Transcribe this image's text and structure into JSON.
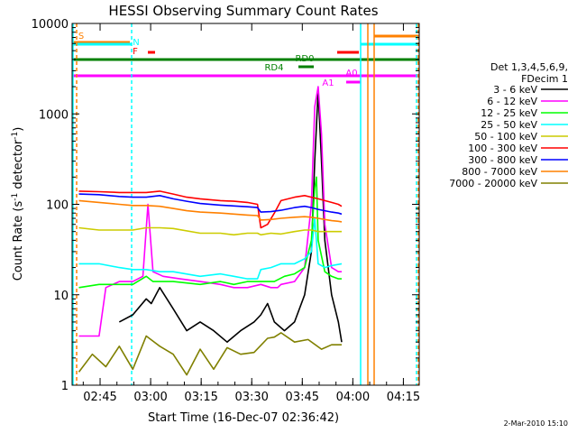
{
  "chart_data": {
    "type": "line",
    "title": "HESSI Observing Summary Count Rates",
    "xlabel": "Start Time (16-Dec-07 02:36:42)",
    "ylabel_main": "Count Rate (s",
    "ylabel_sup1": "-1",
    "ylabel_mid": " detector",
    "ylabel_sup2": "-1",
    "ylabel_end": ")",
    "y_scale": "log",
    "ylim": [
      1,
      10000
    ],
    "xlim_minutes": [
      0,
      103
    ],
    "x_ticks": [
      {
        "label": "02:45",
        "min": 8.3
      },
      {
        "label": "03:00",
        "min": 23.3
      },
      {
        "label": "03:15",
        "min": 38.3
      },
      {
        "label": "03:30",
        "min": 53.3
      },
      {
        "label": "03:45",
        "min": 68.3
      },
      {
        "label": "04:00",
        "min": 83.3
      },
      {
        "label": "04:15",
        "min": 98.3
      }
    ],
    "y_ticks": [
      {
        "label": "1",
        "value": 1
      },
      {
        "label": "10",
        "value": 10
      },
      {
        "label": "100",
        "value": 100
      },
      {
        "label": "1000",
        "value": 1000
      },
      {
        "label": "10000",
        "value": 10000
      }
    ],
    "legend_header": [
      "Det 1,3,4,5,6,9,",
      "FDecim 1"
    ],
    "series": [
      {
        "name": "3 - 6 keV",
        "color": "#000000",
        "points": [
          [
            14,
            5
          ],
          [
            18,
            6
          ],
          [
            22,
            9
          ],
          [
            23.5,
            8
          ],
          [
            26,
            12
          ],
          [
            30,
            7
          ],
          [
            34,
            4
          ],
          [
            38,
            5
          ],
          [
            42,
            4
          ],
          [
            46,
            3
          ],
          [
            50,
            4
          ],
          [
            54,
            5
          ],
          [
            56,
            6
          ],
          [
            58,
            8
          ],
          [
            60,
            5
          ],
          [
            63,
            4
          ],
          [
            66,
            5
          ],
          [
            69,
            10
          ],
          [
            71,
            30
          ],
          [
            72,
            300
          ],
          [
            73,
            1800
          ],
          [
            74,
            300
          ],
          [
            75,
            40
          ],
          [
            77,
            10
          ],
          [
            79,
            5
          ],
          [
            80,
            3
          ]
        ]
      },
      {
        "name": "6 - 12 keV",
        "color": "#ff00ff",
        "points": [
          [
            2,
            3.5
          ],
          [
            8,
            3.5
          ],
          [
            10,
            12
          ],
          [
            14,
            14
          ],
          [
            18,
            14
          ],
          [
            21,
            16
          ],
          [
            22.5,
            100
          ],
          [
            24,
            18
          ],
          [
            27,
            16
          ],
          [
            32,
            15
          ],
          [
            38,
            14
          ],
          [
            44,
            13
          ],
          [
            48,
            12
          ],
          [
            52,
            12
          ],
          [
            56,
            13
          ],
          [
            59,
            12
          ],
          [
            61,
            12
          ],
          [
            62,
            13
          ],
          [
            66,
            14
          ],
          [
            69,
            20
          ],
          [
            71,
            100
          ],
          [
            72,
            1200
          ],
          [
            73,
            2000
          ],
          [
            74,
            600
          ],
          [
            75,
            60
          ],
          [
            77,
            20
          ],
          [
            79,
            18
          ],
          [
            80,
            18
          ]
        ]
      },
      {
        "name": "12 - 25 keV",
        "color": "#00ff00",
        "points": [
          [
            2,
            12
          ],
          [
            8,
            13
          ],
          [
            14,
            13
          ],
          [
            18,
            13
          ],
          [
            22,
            16
          ],
          [
            24,
            14
          ],
          [
            30,
            14
          ],
          [
            38,
            13
          ],
          [
            44,
            14
          ],
          [
            48,
            13
          ],
          [
            52,
            14
          ],
          [
            56,
            14
          ],
          [
            60,
            14
          ],
          [
            63,
            16
          ],
          [
            66,
            17
          ],
          [
            69,
            20
          ],
          [
            71,
            40
          ],
          [
            72,
            150
          ],
          [
            72.5,
            200
          ],
          [
            73,
            40
          ],
          [
            75,
            18
          ],
          [
            77,
            16
          ],
          [
            79,
            15
          ],
          [
            80,
            15
          ]
        ]
      },
      {
        "name": "25 - 50 keV",
        "color": "#00ffff",
        "points": [
          [
            2,
            22
          ],
          [
            8,
            22
          ],
          [
            14,
            20
          ],
          [
            18,
            19
          ],
          [
            22,
            19
          ],
          [
            26,
            18
          ],
          [
            30,
            18
          ],
          [
            38,
            16
          ],
          [
            44,
            17
          ],
          [
            48,
            16
          ],
          [
            52,
            15
          ],
          [
            55,
            15
          ],
          [
            56,
            19
          ],
          [
            59,
            20
          ],
          [
            62,
            22
          ],
          [
            66,
            22
          ],
          [
            69,
            25
          ],
          [
            71,
            30
          ],
          [
            72,
            70
          ],
          [
            73,
            22
          ],
          [
            75,
            20
          ],
          [
            77,
            21
          ],
          [
            80,
            22
          ]
        ]
      },
      {
        "name": "50 - 100 keV",
        "color": "#cccc00",
        "points": [
          [
            2,
            55
          ],
          [
            8,
            52
          ],
          [
            14,
            52
          ],
          [
            18,
            52
          ],
          [
            22,
            55
          ],
          [
            26,
            55
          ],
          [
            30,
            54
          ],
          [
            38,
            48
          ],
          [
            44,
            48
          ],
          [
            48,
            46
          ],
          [
            52,
            48
          ],
          [
            55,
            48
          ],
          [
            56,
            46
          ],
          [
            59,
            48
          ],
          [
            62,
            47
          ],
          [
            66,
            50
          ],
          [
            69,
            52
          ],
          [
            71,
            52
          ],
          [
            73,
            50
          ],
          [
            76,
            50
          ],
          [
            78,
            50
          ],
          [
            80,
            50
          ]
        ]
      },
      {
        "name": "100 - 300 keV",
        "color": "#ff0000",
        "points": [
          [
            2,
            140
          ],
          [
            8,
            138
          ],
          [
            14,
            135
          ],
          [
            18,
            135
          ],
          [
            22,
            135
          ],
          [
            26,
            140
          ],
          [
            30,
            130
          ],
          [
            34,
            120
          ],
          [
            38,
            115
          ],
          [
            44,
            110
          ],
          [
            48,
            108
          ],
          [
            52,
            105
          ],
          [
            55,
            100
          ],
          [
            56,
            55
          ],
          [
            58,
            60
          ],
          [
            60,
            80
          ],
          [
            62,
            110
          ],
          [
            66,
            120
          ],
          [
            69,
            125
          ],
          [
            71,
            120
          ],
          [
            73,
            115
          ],
          [
            75,
            110
          ],
          [
            77,
            105
          ],
          [
            79,
            100
          ],
          [
            80,
            95
          ]
        ]
      },
      {
        "name": "300 - 800 keV",
        "color": "#0000ff",
        "points": [
          [
            2,
            130
          ],
          [
            8,
            128
          ],
          [
            14,
            122
          ],
          [
            18,
            120
          ],
          [
            22,
            120
          ],
          [
            26,
            125
          ],
          [
            30,
            115
          ],
          [
            34,
            108
          ],
          [
            38,
            102
          ],
          [
            44,
            98
          ],
          [
            48,
            96
          ],
          [
            52,
            94
          ],
          [
            55,
            92
          ],
          [
            56,
            82
          ],
          [
            59,
            83
          ],
          [
            62,
            86
          ],
          [
            66,
            92
          ],
          [
            69,
            95
          ],
          [
            71,
            92
          ],
          [
            73,
            88
          ],
          [
            75,
            85
          ],
          [
            77,
            82
          ],
          [
            79,
            80
          ],
          [
            80,
            78
          ]
        ]
      },
      {
        "name": "800 - 7000 keV",
        "color": "#ff8000",
        "points": [
          [
            2,
            110
          ],
          [
            8,
            105
          ],
          [
            14,
            100
          ],
          [
            18,
            97
          ],
          [
            22,
            97
          ],
          [
            26,
            95
          ],
          [
            30,
            90
          ],
          [
            34,
            85
          ],
          [
            38,
            82
          ],
          [
            44,
            80
          ],
          [
            48,
            78
          ],
          [
            52,
            76
          ],
          [
            55,
            75
          ],
          [
            56,
            67
          ],
          [
            59,
            68
          ],
          [
            62,
            70
          ],
          [
            66,
            72
          ],
          [
            69,
            73
          ],
          [
            71,
            72
          ],
          [
            73,
            70
          ],
          [
            75,
            68
          ],
          [
            77,
            66
          ],
          [
            79,
            65
          ],
          [
            80,
            64
          ]
        ]
      },
      {
        "name": "7000 - 20000 keV",
        "color": "#808000",
        "points": [
          [
            2,
            1.4
          ],
          [
            6,
            2.2
          ],
          [
            10,
            1.6
          ],
          [
            14,
            2.7
          ],
          [
            18,
            1.5
          ],
          [
            22,
            3.5
          ],
          [
            26,
            2.7
          ],
          [
            30,
            2.2
          ],
          [
            34,
            1.3
          ],
          [
            38,
            2.5
          ],
          [
            42,
            1.5
          ],
          [
            46,
            2.6
          ],
          [
            50,
            2.2
          ],
          [
            54,
            2.3
          ],
          [
            58,
            3.3
          ],
          [
            60,
            3.4
          ],
          [
            62,
            3.8
          ],
          [
            66,
            3.0
          ],
          [
            70,
            3.2
          ],
          [
            74,
            2.5
          ],
          [
            77,
            2.8
          ],
          [
            80,
            2.8
          ]
        ]
      }
    ],
    "state_bars": [
      {
        "label": "S",
        "color": "#ff8000"
      },
      {
        "label": "N",
        "color": "#00ffff"
      },
      {
        "label": "F",
        "color": "#ff0000"
      },
      {
        "label": "RD0",
        "color": "#008000"
      },
      {
        "label": "RD4",
        "color": "#008000"
      },
      {
        "label": "A1",
        "color": "#ff00ff"
      },
      {
        "label": "A0",
        "color": "#ff00ff"
      }
    ],
    "legend_placement": "right",
    "grid": false
  },
  "footer": {
    "timestamp": "2-Mar-2010 15:10"
  }
}
